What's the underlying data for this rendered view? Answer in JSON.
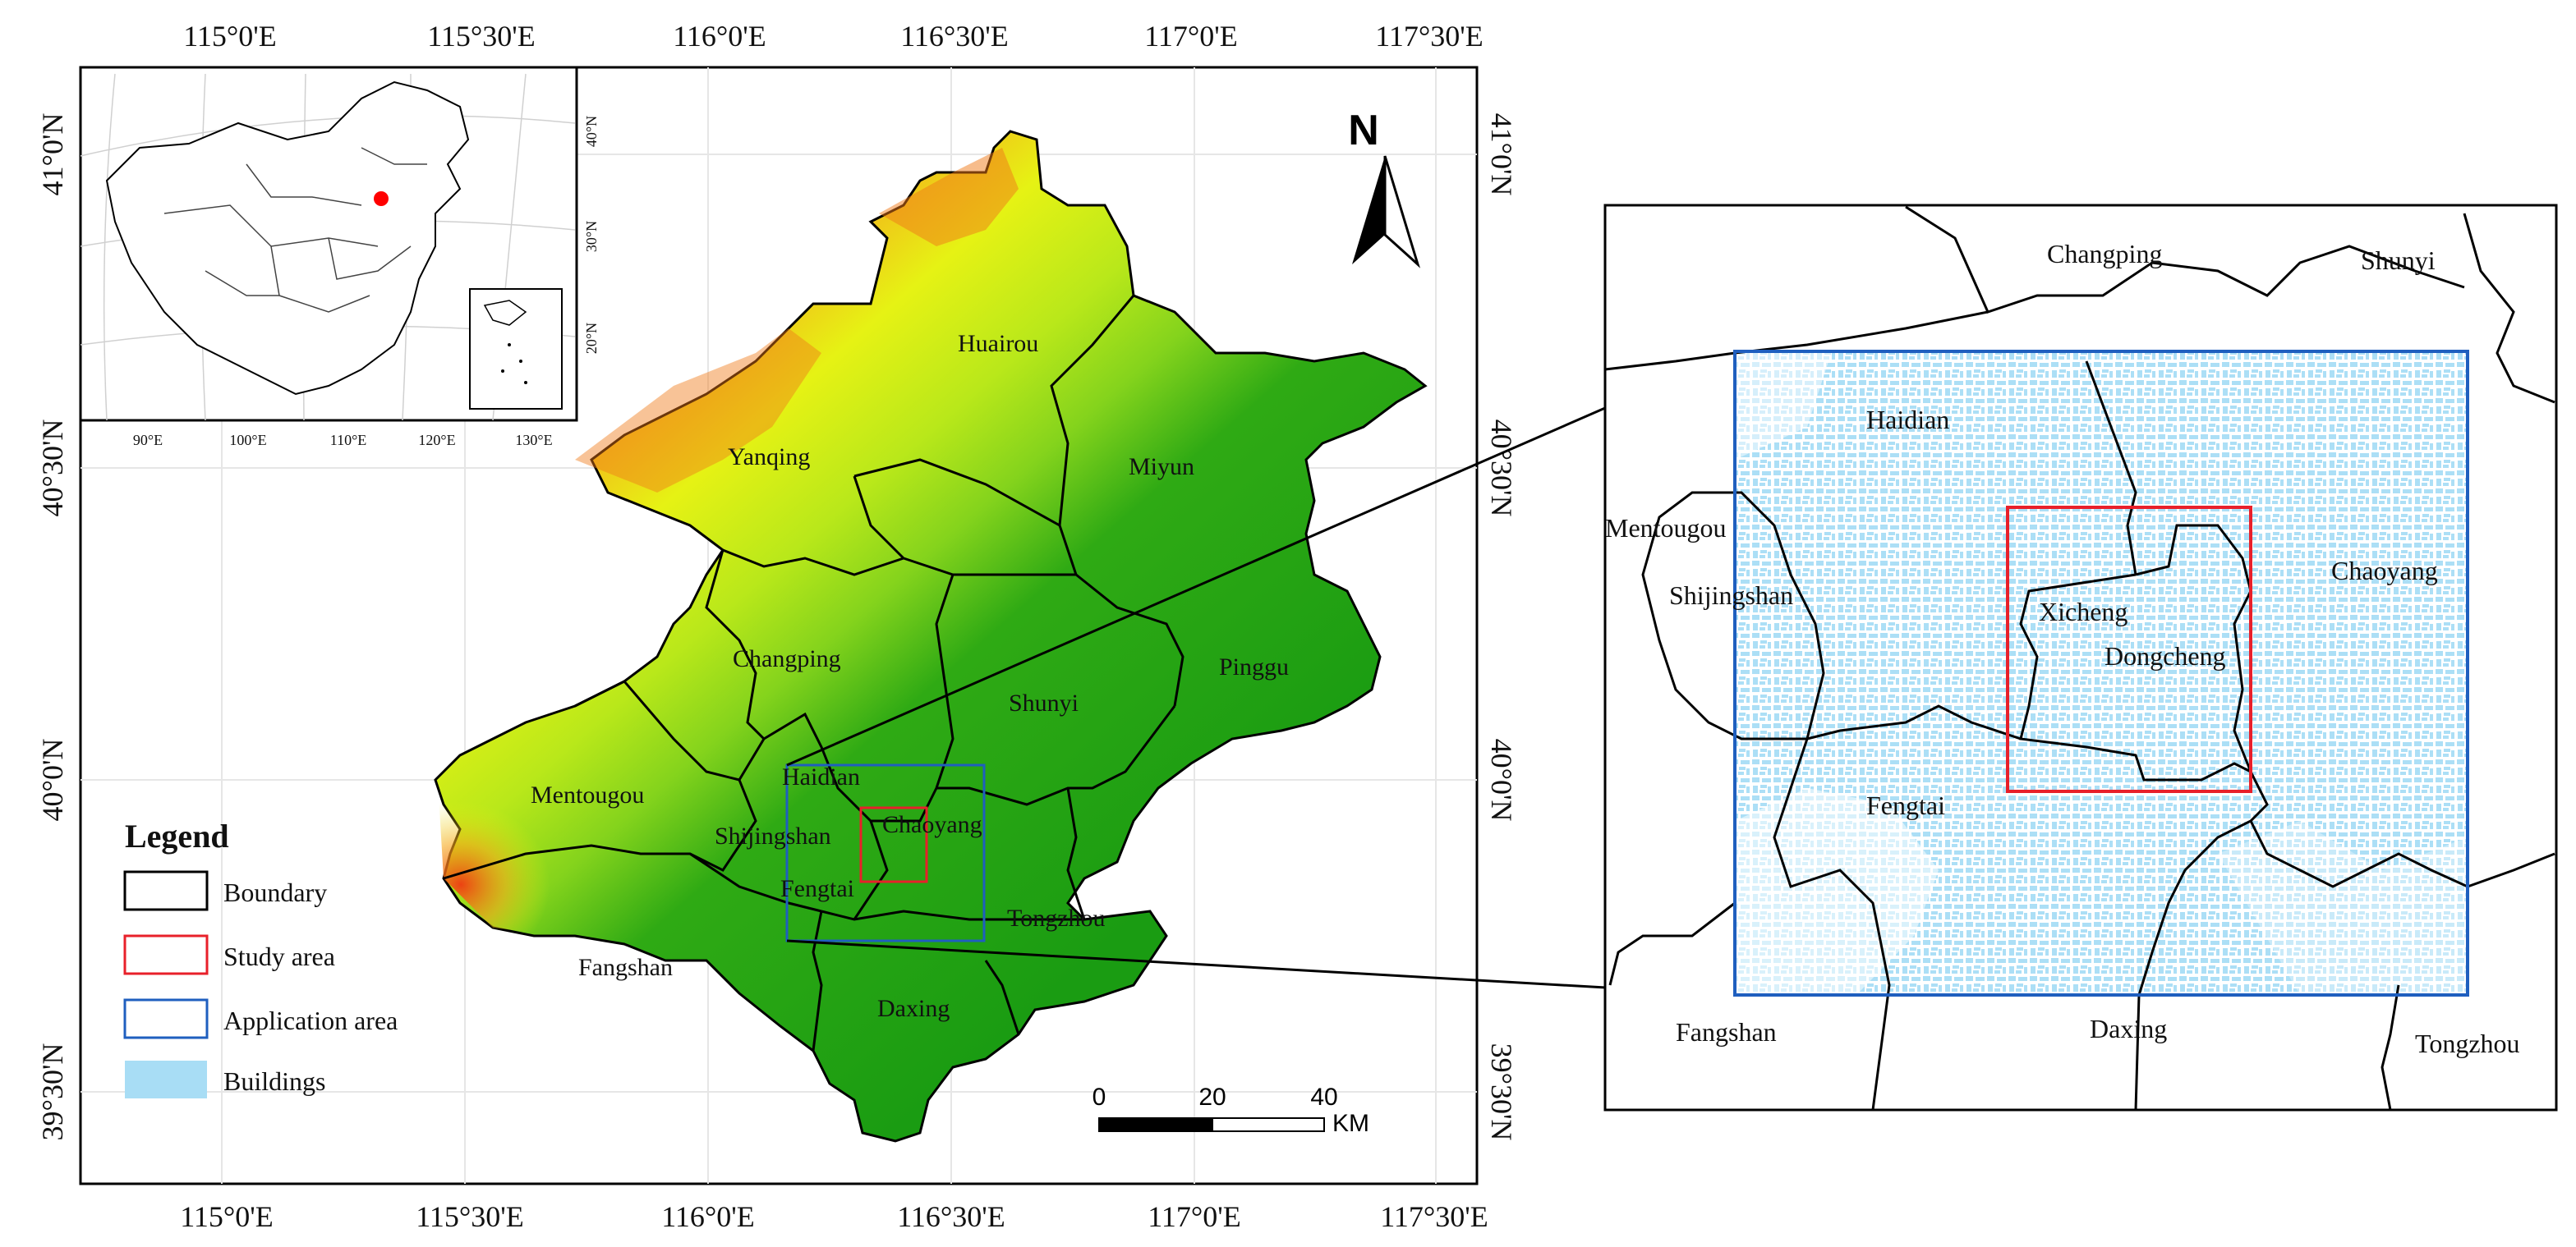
{
  "main_map": {
    "top_lon_labels": [
      "115°0'E",
      "115°30'E",
      "116°0'E",
      "116°30'E",
      "117°0'E",
      "117°30'E"
    ],
    "bottom_lon_labels": [
      "115°0'E",
      "115°30'E",
      "116°0'E",
      "116°30'E",
      "117°0'E",
      "117°30'E"
    ],
    "left_lat_labels": [
      "41°0'N",
      "40°30'N",
      "40°0'N",
      "39°30'N"
    ],
    "right_lat_labels": [
      "41°0'N",
      "40°30'N",
      "40°0'N",
      "39°30'N"
    ],
    "districts": {
      "huairou": "Huairou",
      "yanqing": "Yanqing",
      "miyun": "Miyun",
      "changping": "Changping",
      "pinggu": "Pinggu",
      "shunyi": "Shunyi",
      "mentougou": "Mentougou",
      "haidian": "Haidian",
      "shijingshan": "Shijingshan",
      "chaoyang": "Chaoyang",
      "fengtai": "Fengtai",
      "tongzhou": "Tongzhou",
      "fangshan": "Fangshan",
      "daxing": "Daxing"
    },
    "north_arrow_label": "N",
    "scale_bar": {
      "ticks": [
        "0",
        "20",
        "40"
      ],
      "unit": "KM"
    }
  },
  "inset_map": {
    "lon_labels": [
      "90°E",
      "100°E",
      "110°E",
      "120°E",
      "130°E"
    ],
    "lat_labels": [
      "40°N",
      "30°N",
      "20°N"
    ],
    "highlight_color": "#ff0000"
  },
  "legend": {
    "title": "Legend",
    "items": [
      {
        "label": "Boundary",
        "color": "#000000"
      },
      {
        "label": "Study area",
        "color": "#e8202a"
      },
      {
        "label": "Application area",
        "color": "#1f5fbf"
      },
      {
        "label": "Buildings",
        "color": "#a8ddf5"
      }
    ]
  },
  "detail_map": {
    "districts": {
      "changping": "Changping",
      "shunyi": "Shunyi",
      "haidian": "Haidian",
      "mentougou": "Mentougou",
      "shijingshan": "Shijingshan",
      "chaoyang": "Chaoyang",
      "xicheng": "Xicheng",
      "dongcheng": "Dongcheng",
      "fengtai": "Fengtai",
      "fangshan": "Fangshan",
      "daxing": "Daxing",
      "tongzhou": "Tongzhou"
    }
  },
  "colors": {
    "elev_low": "#1a9c12",
    "elev_mid": "#84d31c",
    "elev_high": "#e6f214",
    "elev_peak": "#f03a12",
    "buildings": "#a8ddf5",
    "study_area": "#e8202a",
    "application_area": "#1f5fbf"
  }
}
